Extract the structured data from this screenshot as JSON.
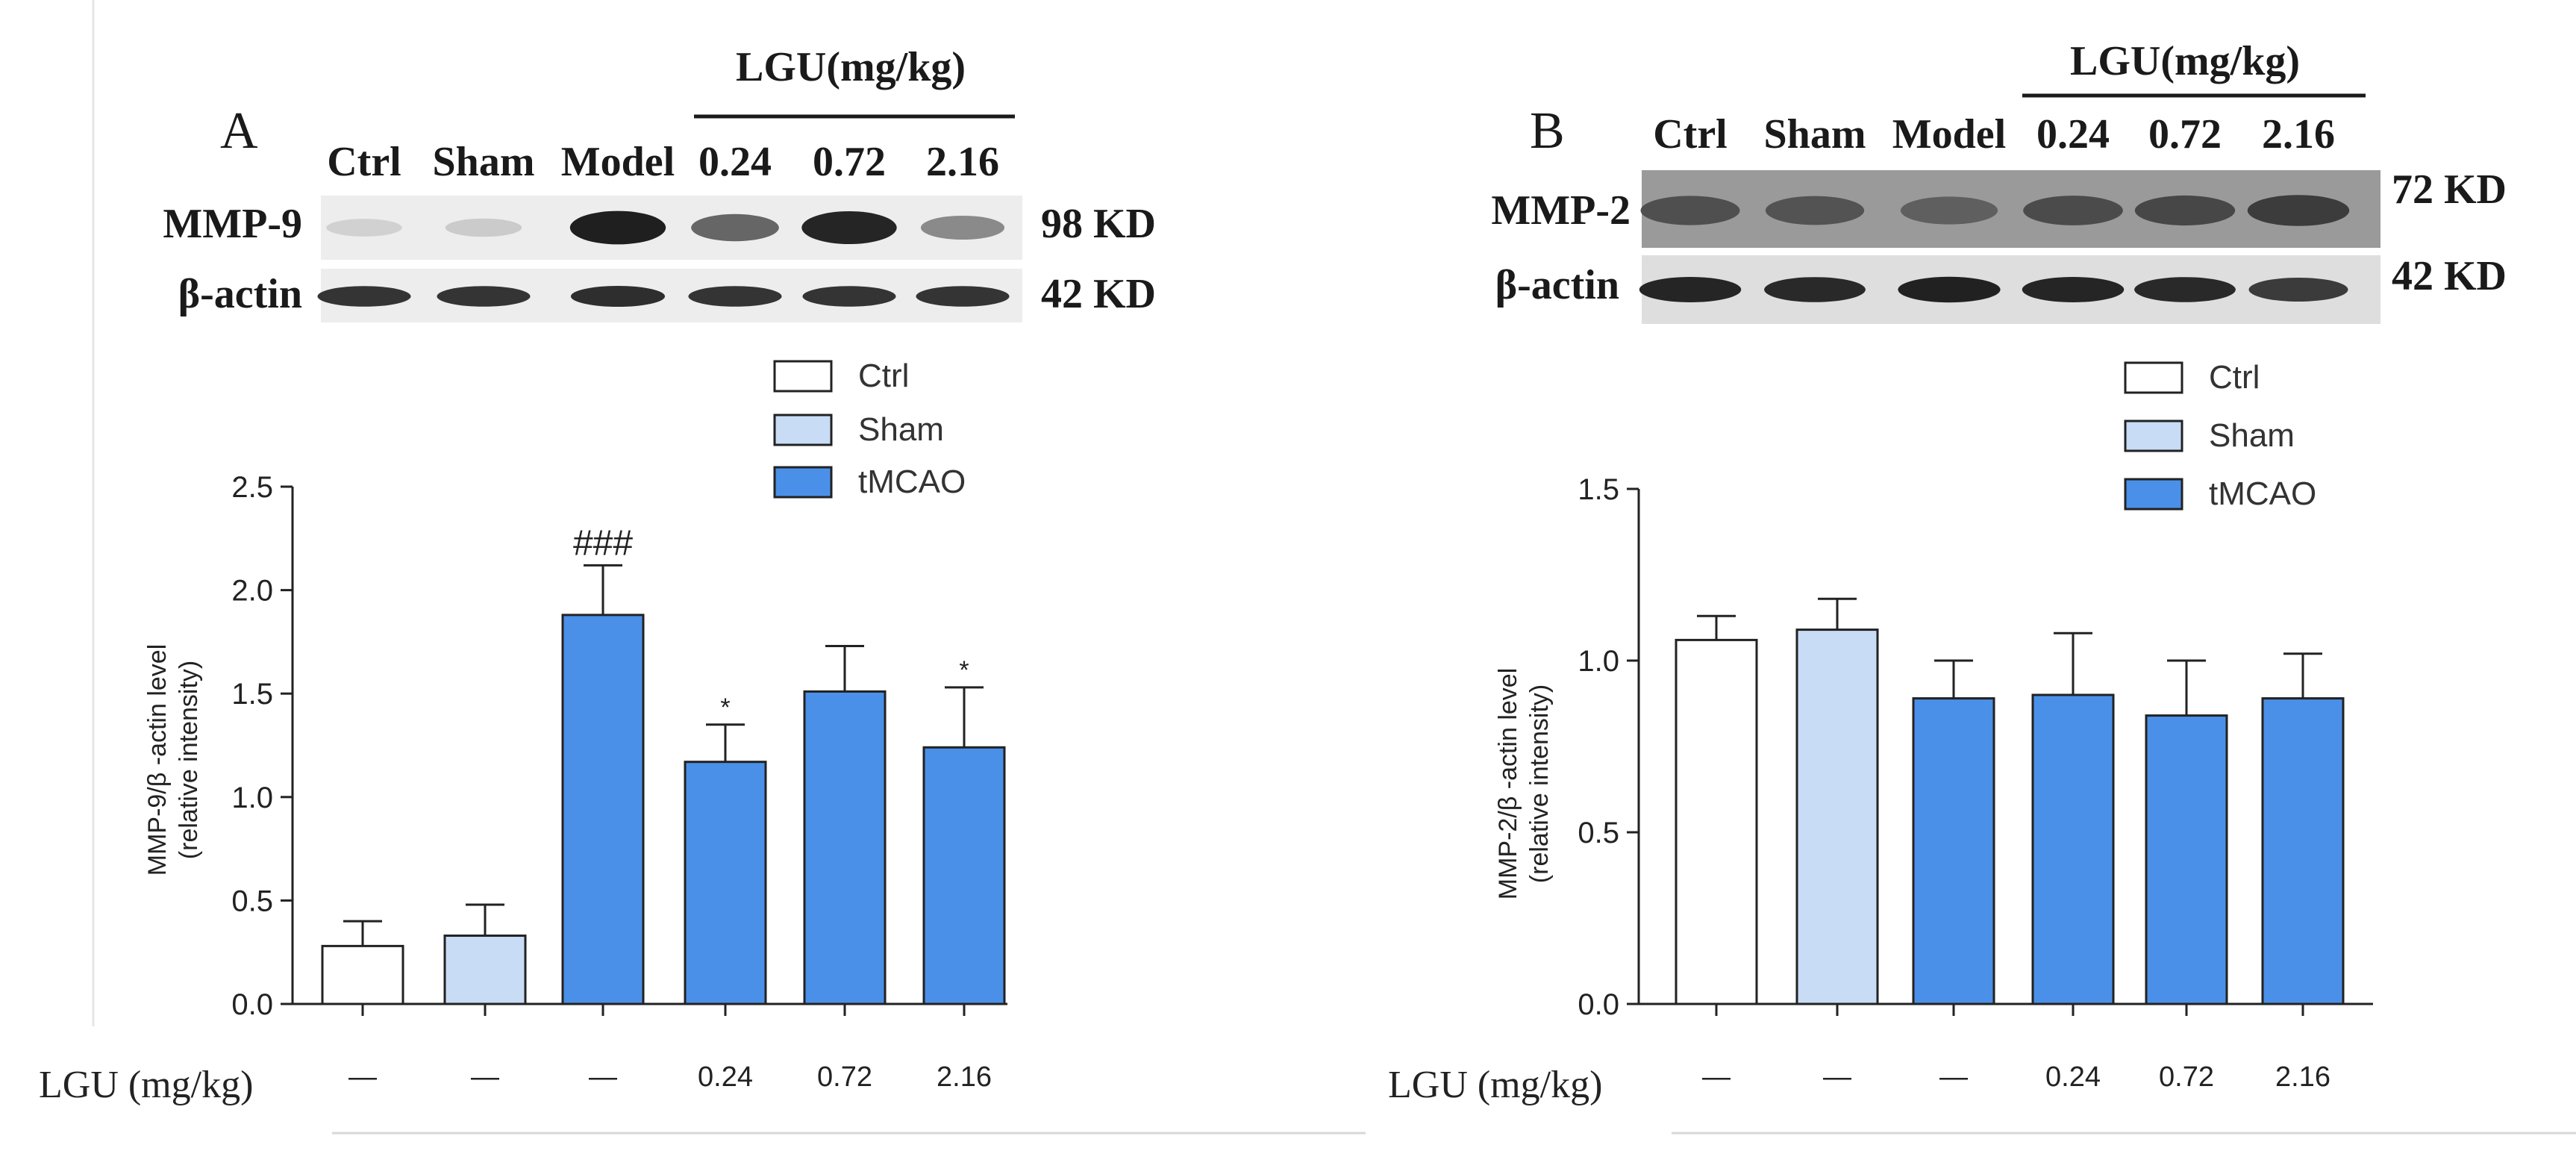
{
  "colors": {
    "ctrl": "#ffffff",
    "sham": "#c9dcf6",
    "tmcao": "#4a90e8",
    "axis": "#222222"
  },
  "legend": [
    {
      "label": "Ctrl",
      "color": "#ffffff"
    },
    {
      "label": "Sham",
      "color": "#c9dcf6"
    },
    {
      "label": "tMCAO",
      "color": "#4a90e8"
    }
  ],
  "dose_row_label": "LGU (mg/kg)",
  "doses": [
    "—",
    "—",
    "—",
    "0.24",
    "0.72",
    "2.16"
  ],
  "chart_data": [
    {
      "type": "bar",
      "panel": "A",
      "blot": {
        "group_header": "LGU(mg/kg)",
        "lanes": [
          "Ctrl",
          "Sham",
          "Model",
          "0.24",
          "0.72",
          "2.16"
        ],
        "rows": [
          {
            "name": "MMP-9",
            "size": "98 KD",
            "intensities": [
              0.12,
              0.15,
              0.95,
              0.62,
              0.92,
              0.45
            ]
          },
          {
            "name": "β-actin",
            "size": "42 KD",
            "intensities": [
              0.85,
              0.85,
              0.88,
              0.85,
              0.85,
              0.85
            ]
          }
        ]
      },
      "categories": [
        "Ctrl",
        "Sham",
        "Model",
        "0.24",
        "0.72",
        "2.16"
      ],
      "values": [
        0.28,
        0.33,
        1.88,
        1.17,
        1.51,
        1.24
      ],
      "errors": [
        0.12,
        0.15,
        0.24,
        0.18,
        0.22,
        0.29
      ],
      "groups": [
        "ctrl",
        "sham",
        "tmcao",
        "tmcao",
        "tmcao",
        "tmcao"
      ],
      "annotations": [
        "",
        "",
        "###",
        "*",
        "",
        "*"
      ],
      "ylabel_line1": "MMP-9/β -actin level",
      "ylabel_line2": "(relative intensity)",
      "ylim": [
        0,
        2.5
      ],
      "yticks": [
        "0.0",
        "0.5",
        "1.0",
        "1.5",
        "2.0",
        "2.5"
      ]
    },
    {
      "type": "bar",
      "panel": "B",
      "blot": {
        "group_header": "LGU(mg/kg)",
        "lanes": [
          "Ctrl",
          "Sham",
          "Model",
          "0.24",
          "0.72",
          "2.16"
        ],
        "rows": [
          {
            "name": "MMP-2",
            "size": "72 KD",
            "intensities": [
              0.8,
              0.78,
              0.72,
              0.82,
              0.84,
              0.9
            ]
          },
          {
            "name": "β-actin",
            "size": "42 KD",
            "intensities": [
              0.9,
              0.88,
              0.92,
              0.9,
              0.88,
              0.8
            ]
          }
        ]
      },
      "categories": [
        "Ctrl",
        "Sham",
        "Model",
        "0.24",
        "0.72",
        "2.16"
      ],
      "values": [
        1.06,
        1.09,
        0.89,
        0.9,
        0.84,
        0.89
      ],
      "errors": [
        0.07,
        0.09,
        0.11,
        0.18,
        0.16,
        0.13
      ],
      "groups": [
        "ctrl",
        "sham",
        "tmcao",
        "tmcao",
        "tmcao",
        "tmcao"
      ],
      "annotations": [
        "",
        "",
        "",
        "",
        "",
        ""
      ],
      "ylabel_line1": "MMP-2/β -actin level",
      "ylabel_line2": "(relative intensity)",
      "ylim": [
        0,
        1.5
      ],
      "yticks": [
        "0.0",
        "0.5",
        "1.0",
        "1.5"
      ]
    }
  ]
}
